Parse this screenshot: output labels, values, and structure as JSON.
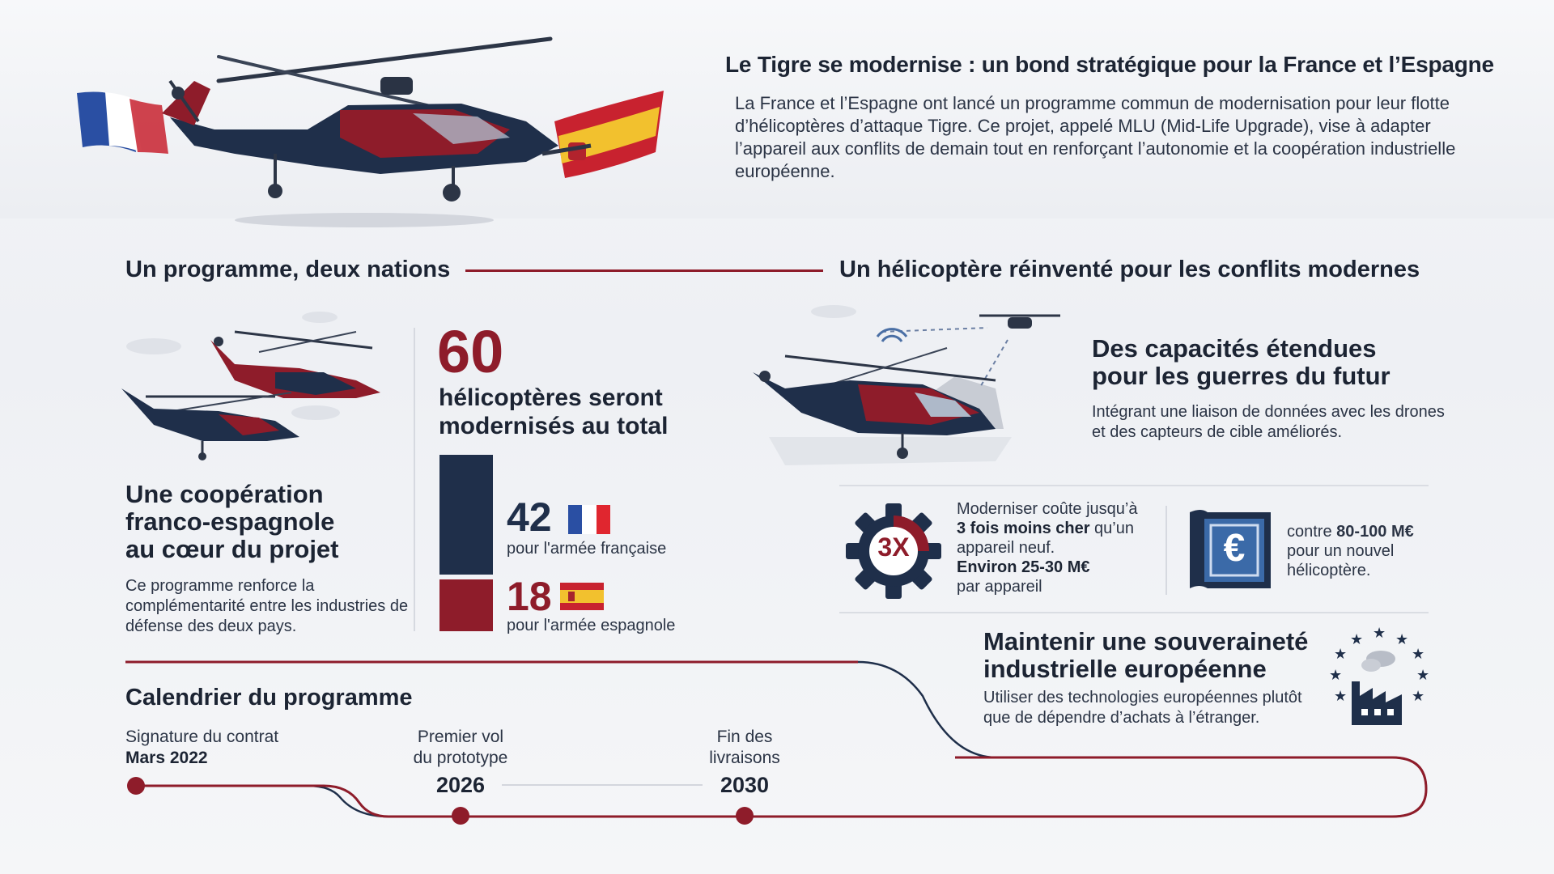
{
  "header": {
    "title": "Le Tigre se modernise : un bond stratégique pour la France et l’Espagne",
    "intro": "La France et l’Espagne ont lancé un programme commun de modernisation pour leur flotte d’hélicoptères d’attaque Tigre. Ce projet, appelé MLU (Mid-Life Upgrade), vise à adapter l’appareil aux conflits de demain tout en renforçant l’autonomie et la coopération industrielle européenne."
  },
  "left": {
    "heading": "Un programme, deux nations",
    "coop_title_1": "Une coopération",
    "coop_title_2": "franco-espagnole",
    "coop_title_3": "au cœur du projet",
    "coop_text": "Ce programme renforce la complémentarité entre les industries de défense des deux pays.",
    "total_number": "60",
    "total_sub_1": "hélicoptères seront",
    "total_sub_2": "modernisés au total",
    "fr_number": "42",
    "fr_label": "pour l'armée française",
    "es_number": "18",
    "es_label": "pour l'armée espagnole",
    "fr_value": 42,
    "es_value": 18
  },
  "right": {
    "heading": "Un hélicoptère réinventé pour les conflits modernes",
    "cap_title_1": "Des capacités étendues",
    "cap_title_2": "pour les guerres du futur",
    "cap_text": "Intégrant une liaison de données avec les drones et des capteurs de cible améliorés.",
    "gear_label": "3X",
    "cost_line1": "Moderniser coûte jusqu’à",
    "cost_bold1": "3 fois moins cher",
    "cost_line2": " qu’un appareil neuf.",
    "cost_bold2": "Environ 25-30 M€",
    "cost_line3": "par appareil",
    "cost2_pre": "contre ",
    "cost2_bold": "80-100 M€",
    "cost2_post": "pour un nouvel hélicoptère.",
    "euro_symbol": "€",
    "sov_title_1": "Maintenir une souveraineté",
    "sov_title_2": "industrielle européenne",
    "sov_text": "Utiliser des technologies européennes plutôt que de dépendre d’achats à l’étranger."
  },
  "timeline": {
    "heading": "Calendrier du programme",
    "events": [
      {
        "label": "Signature du contrat",
        "date": "Mars 2022"
      },
      {
        "label_1": "Premier vol",
        "label_2": "du prototype",
        "date": "2026"
      },
      {
        "label_1": "Fin des",
        "label_2": "livraisons",
        "date": "2030"
      }
    ]
  },
  "colors": {
    "navy": "#1f2f4a",
    "crimson": "#8e1c2a",
    "text": "#1c2433",
    "france_blue": "#2a4fa3",
    "spain_yellow": "#f2c12e"
  },
  "icons": [
    "helicopter-hero-illustration",
    "france-flag-icon",
    "spain-flag-icon",
    "helicopters-pair-illustration",
    "drone-link-illustration",
    "gear-icon",
    "euro-document-icon",
    "eu-stars-factory-icon"
  ]
}
